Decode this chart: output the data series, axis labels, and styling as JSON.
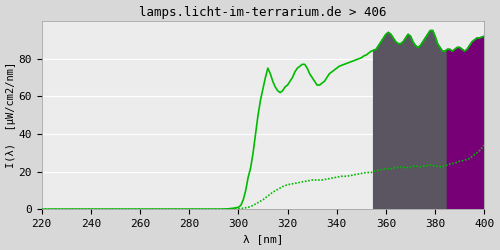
{
  "title": "lamps.licht-im-terrarium.de > 406",
  "xlabel": "λ [nm]",
  "ylabel": "I(λ)  [μW/cm2/nm]",
  "xlim": [
    220,
    400
  ],
  "ylim": [
    0,
    100
  ],
  "xticks": [
    220,
    240,
    260,
    280,
    300,
    320,
    340,
    360,
    380,
    400
  ],
  "yticks": [
    0,
    20,
    40,
    60,
    80
  ],
  "background_color": "#d8d8d8",
  "plot_bg_color": "#ececec",
  "grid_color": "#ffffff",
  "line_color": "#00bb00",
  "line_width": 1.2,
  "gray_region_color": "#5a5560",
  "gray_region_alpha": 1.0,
  "purple_region_color": "#770077",
  "purple_region_alpha": 1.0,
  "spectrum_upper": [
    [
      220,
      0.0
    ],
    [
      240,
      0.0
    ],
    [
      260,
      0.0
    ],
    [
      280,
      0.0
    ],
    [
      290,
      0.0
    ],
    [
      293,
      0.0
    ],
    [
      296,
      0.2
    ],
    [
      298,
      0.5
    ],
    [
      300,
      1.0
    ],
    [
      301,
      2.0
    ],
    [
      302,
      5.0
    ],
    [
      303,
      10.0
    ],
    [
      304,
      17.0
    ],
    [
      305,
      22.0
    ],
    [
      306,
      30.0
    ],
    [
      307,
      40.0
    ],
    [
      308,
      50.0
    ],
    [
      309,
      58.0
    ],
    [
      310,
      64.0
    ],
    [
      311,
      70.0
    ],
    [
      312,
      75.0
    ],
    [
      313,
      72.0
    ],
    [
      314,
      68.0
    ],
    [
      315,
      65.0
    ],
    [
      316,
      63.0
    ],
    [
      317,
      62.0
    ],
    [
      318,
      63.0
    ],
    [
      319,
      65.0
    ],
    [
      320,
      66.0
    ],
    [
      321,
      68.0
    ],
    [
      322,
      70.0
    ],
    [
      323,
      73.0
    ],
    [
      324,
      75.0
    ],
    [
      325,
      76.0
    ],
    [
      326,
      77.0
    ],
    [
      327,
      77.0
    ],
    [
      328,
      75.0
    ],
    [
      329,
      72.0
    ],
    [
      330,
      70.0
    ],
    [
      331,
      68.0
    ],
    [
      332,
      66.0
    ],
    [
      333,
      66.0
    ],
    [
      334,
      67.0
    ],
    [
      335,
      68.0
    ],
    [
      336,
      70.0
    ],
    [
      337,
      72.0
    ],
    [
      338,
      73.0
    ],
    [
      339,
      74.0
    ],
    [
      340,
      75.0
    ],
    [
      341,
      76.0
    ],
    [
      342,
      76.5
    ],
    [
      343,
      77.0
    ],
    [
      344,
      77.5
    ],
    [
      345,
      78.0
    ],
    [
      346,
      78.5
    ],
    [
      347,
      79.0
    ],
    [
      348,
      79.5
    ],
    [
      349,
      80.0
    ],
    [
      350,
      80.5
    ],
    [
      351,
      81.5
    ],
    [
      352,
      82.0
    ],
    [
      353,
      83.0
    ],
    [
      354,
      84.0
    ],
    [
      355,
      84.5
    ],
    [
      356,
      85.0
    ],
    [
      357,
      87.0
    ],
    [
      358,
      89.0
    ],
    [
      359,
      91.0
    ],
    [
      360,
      93.0
    ],
    [
      361,
      94.0
    ],
    [
      362,
      93.0
    ],
    [
      363,
      91.0
    ],
    [
      364,
      89.0
    ],
    [
      365,
      88.0
    ],
    [
      366,
      88.0
    ],
    [
      367,
      89.0
    ],
    [
      368,
      91.0
    ],
    [
      369,
      93.0
    ],
    [
      370,
      92.0
    ],
    [
      371,
      89.0
    ],
    [
      372,
      87.0
    ],
    [
      373,
      86.0
    ],
    [
      374,
      87.0
    ],
    [
      375,
      89.0
    ],
    [
      376,
      91.0
    ],
    [
      377,
      93.0
    ],
    [
      378,
      95.0
    ],
    [
      379,
      95.0
    ],
    [
      380,
      92.0
    ],
    [
      381,
      88.0
    ],
    [
      382,
      86.0
    ],
    [
      383,
      84.0
    ],
    [
      384,
      84.0
    ],
    [
      385,
      85.0
    ],
    [
      386,
      85.0
    ],
    [
      387,
      84.0
    ],
    [
      388,
      85.0
    ],
    [
      389,
      86.0
    ],
    [
      390,
      86.0
    ],
    [
      391,
      85.0
    ],
    [
      392,
      84.0
    ],
    [
      393,
      85.0
    ],
    [
      394,
      87.0
    ],
    [
      395,
      89.0
    ],
    [
      396,
      90.0
    ],
    [
      397,
      91.0
    ],
    [
      398,
      91.0
    ],
    [
      399,
      91.5
    ],
    [
      400,
      92.0
    ]
  ],
  "spectrum_lower": [
    [
      220,
      0.0
    ],
    [
      240,
      0.0
    ],
    [
      260,
      0.0
    ],
    [
      280,
      0.0
    ],
    [
      290,
      0.0
    ],
    [
      295,
      0.0
    ],
    [
      300,
      0.2
    ],
    [
      302,
      0.5
    ],
    [
      304,
      1.0
    ],
    [
      306,
      2.0
    ],
    [
      308,
      3.5
    ],
    [
      310,
      5.0
    ],
    [
      312,
      7.0
    ],
    [
      314,
      9.0
    ],
    [
      316,
      10.5
    ],
    [
      318,
      12.0
    ],
    [
      320,
      13.0
    ],
    [
      322,
      13.5
    ],
    [
      324,
      14.0
    ],
    [
      326,
      14.5
    ],
    [
      328,
      15.0
    ],
    [
      330,
      15.5
    ],
    [
      332,
      15.5
    ],
    [
      334,
      15.5
    ],
    [
      336,
      16.0
    ],
    [
      338,
      16.5
    ],
    [
      340,
      17.0
    ],
    [
      342,
      17.5
    ],
    [
      344,
      17.5
    ],
    [
      346,
      18.0
    ],
    [
      348,
      18.5
    ],
    [
      350,
      19.0
    ],
    [
      352,
      19.5
    ],
    [
      354,
      19.5
    ],
    [
      355,
      20.0
    ],
    [
      356,
      20.5
    ],
    [
      358,
      21.0
    ],
    [
      360,
      21.5
    ],
    [
      362,
      21.5
    ],
    [
      364,
      22.0
    ],
    [
      366,
      22.5
    ],
    [
      368,
      22.0
    ],
    [
      370,
      22.5
    ],
    [
      372,
      23.0
    ],
    [
      374,
      22.5
    ],
    [
      376,
      23.0
    ],
    [
      378,
      23.5
    ],
    [
      380,
      23.0
    ],
    [
      382,
      22.5
    ],
    [
      384,
      23.0
    ],
    [
      386,
      24.0
    ],
    [
      388,
      24.5
    ],
    [
      390,
      25.5
    ],
    [
      392,
      26.0
    ],
    [
      394,
      27.0
    ],
    [
      396,
      29.0
    ],
    [
      398,
      31.0
    ],
    [
      400,
      34.0
    ]
  ],
  "gray_x_start": 355,
  "gray_x_end": 385,
  "purple_x_start": 385,
  "purple_x_end": 400
}
